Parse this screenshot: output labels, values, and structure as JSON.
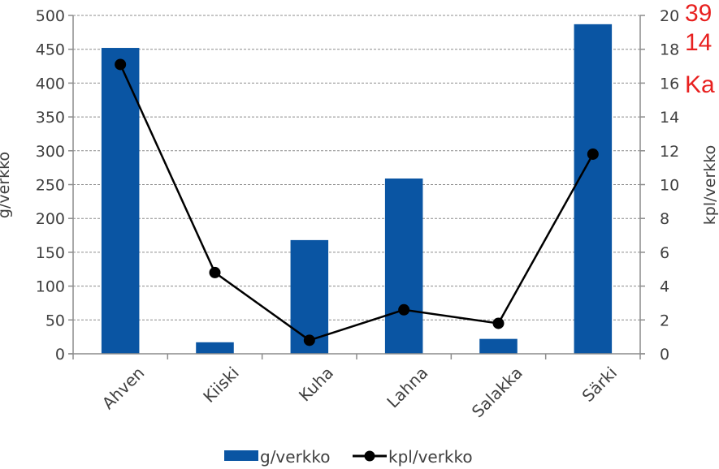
{
  "chart_data": {
    "type": "bar",
    "title": "",
    "categories": [
      "Ahven",
      "Kiiski",
      "Kuha",
      "Lahna",
      "Salakka",
      "Särki"
    ],
    "series": [
      {
        "name": "g/verkko",
        "kind": "bar",
        "axis": "left",
        "color": "#0a55a3",
        "values": [
          452,
          17,
          168,
          259,
          22,
          487
        ]
      },
      {
        "name": "kpl/verkko",
        "kind": "line",
        "axis": "right",
        "color": "#000000",
        "values": [
          17.1,
          4.8,
          0.8,
          2.6,
          1.8,
          11.8
        ]
      }
    ],
    "ylabel": "g/verkko",
    "y2label": "kpl/verkko",
    "ylim": [
      0,
      500
    ],
    "y2lim": [
      0,
      20
    ],
    "yticks": [
      "0",
      "50",
      "100",
      "150",
      "200",
      "250",
      "300",
      "350",
      "400",
      "450",
      "500"
    ],
    "y2ticks": [
      "0",
      "2",
      "4",
      "6",
      "8",
      "10",
      "12",
      "14",
      "16",
      "18",
      "20"
    ],
    "grid": true,
    "legend_position": "bottom"
  },
  "side_notes": [
    "39",
    "14",
    "Ka"
  ]
}
